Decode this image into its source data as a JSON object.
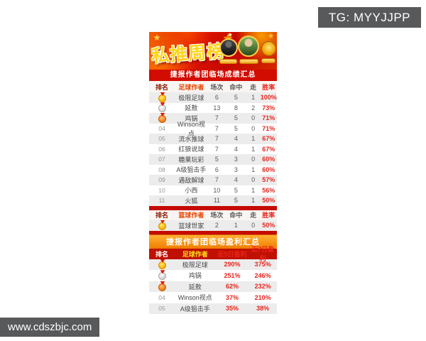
{
  "page": {
    "tg_label": "TG: MYYJJPP",
    "watermark": "www.cdszbjc.com"
  },
  "banner": {
    "title": "私推周榜",
    "subtitle": "捷报作者团临场成绩汇总"
  },
  "colors": {
    "banner_red": "#d20c00",
    "accent_orange": "#f07c00",
    "gold": "#ffd418",
    "header_maroon": "#8c1500",
    "author_header_red": "#e84300",
    "win_rate_red": "#e8251d",
    "profit_header_bg": "#c01000",
    "profit_header_yellow": "#ffe11e",
    "overlay_gray": "#58595b"
  },
  "football_table": {
    "headers": {
      "rank": "排名",
      "author": "足球作者",
      "matches": "场次",
      "hits": "命中",
      "push": "走",
      "win_rate": "胜率"
    },
    "rows": [
      {
        "medal": "gold-medal",
        "author": "极限足球",
        "matches": "6",
        "hits": "5",
        "push": "1",
        "win_rate": "100%"
      },
      {
        "medal": "silver-medal",
        "author": "延敖",
        "matches": "13",
        "hits": "8",
        "push": "2",
        "win_rate": "73%"
      },
      {
        "medal": "bronze-medal",
        "author": "鸡锅",
        "matches": "7",
        "hits": "5",
        "push": "0",
        "win_rate": "71%"
      },
      {
        "rank": "04",
        "author": "Winson视点",
        "matches": "7",
        "hits": "5",
        "push": "0",
        "win_rate": "71%"
      },
      {
        "rank": "05",
        "author": "流水推球",
        "matches": "7",
        "hits": "4",
        "push": "1",
        "win_rate": "67%"
      },
      {
        "rank": "06",
        "author": "红狼说球",
        "matches": "7",
        "hits": "4",
        "push": "1",
        "win_rate": "67%"
      },
      {
        "rank": "07",
        "author": "糖果玩彩",
        "matches": "5",
        "hits": "3",
        "push": "0",
        "win_rate": "60%"
      },
      {
        "rank": "08",
        "author": "A级狙击手",
        "matches": "6",
        "hits": "3",
        "push": "1",
        "win_rate": "60%"
      },
      {
        "rank": "09",
        "author": "遇敌解球",
        "matches": "7",
        "hits": "4",
        "push": "0",
        "win_rate": "57%"
      },
      {
        "rank": "10",
        "author": "小西",
        "matches": "10",
        "hits": "5",
        "push": "1",
        "win_rate": "56%"
      },
      {
        "rank": "11",
        "author": "火狐",
        "matches": "11",
        "hits": "5",
        "push": "1",
        "win_rate": "50%"
      }
    ]
  },
  "basketball_table": {
    "headers": {
      "rank": "排名",
      "author": "篮球作者",
      "matches": "场次",
      "hits": "命中",
      "push": "走",
      "win_rate": "胜率"
    },
    "rows": [
      {
        "medal": "gold-medal",
        "author": "篮球世家",
        "matches": "2",
        "hits": "1",
        "push": "0",
        "win_rate": "50%"
      }
    ]
  },
  "profit_section": {
    "banner": "捷报作者团临场盈利汇总",
    "headers": {
      "rank": "排名",
      "author": "足球作者",
      "p5": "近5日盈利",
      "p7": "近7日盈利"
    },
    "rows": [
      {
        "medal": "gold-medal",
        "author": "极限足球",
        "p5": "290%",
        "p7": "375%"
      },
      {
        "medal": "silver-medal",
        "author": "鸡锅",
        "p5": "251%",
        "p7": "246%"
      },
      {
        "medal": "bronze-medal",
        "author": "延敖",
        "p5": "62%",
        "p7": "232%"
      },
      {
        "rank": "04",
        "author": "Winson视点",
        "p5": "37%",
        "p7": "210%"
      },
      {
        "rank": "05",
        "author": "A级狙击手",
        "p5": "35%",
        "p7": "38%"
      }
    ]
  }
}
